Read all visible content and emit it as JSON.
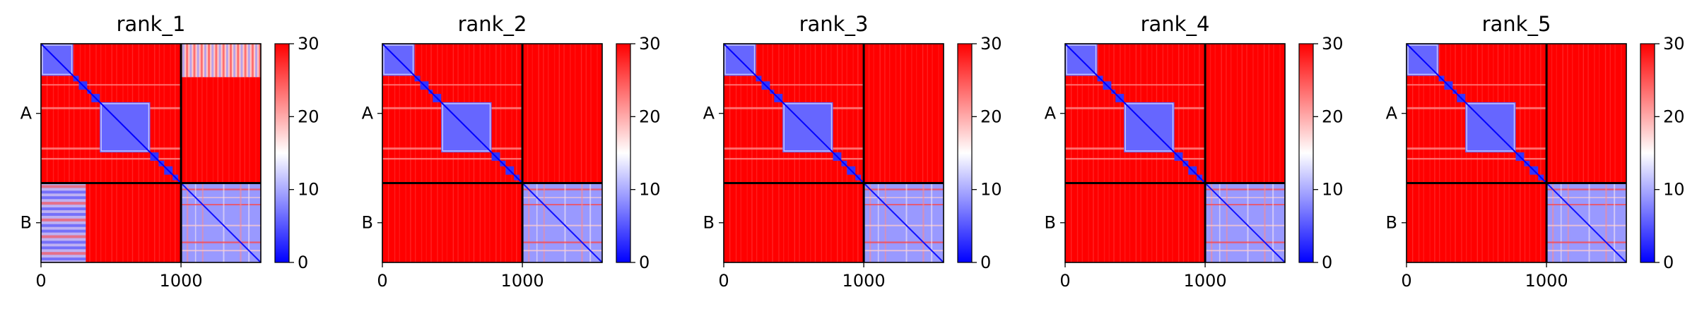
{
  "chart_data": [
    {
      "type": "heatmap",
      "title": "rank_1",
      "xlabel": "",
      "ylabel": "",
      "x_ticks": [
        0,
        1000
      ],
      "x_range": [
        0,
        1570
      ],
      "chain_boundaries": [
        1000
      ],
      "row_labels": [
        "A",
        "B"
      ],
      "colorbar": {
        "min": 0,
        "max": 30,
        "ticks": [
          0,
          10,
          20,
          30
        ],
        "colormap": "bwr"
      },
      "blocks": [
        {
          "rows": "A",
          "cols": "A",
          "mean_value": 24,
          "pattern": "low-error diagonal domains"
        },
        {
          "rows": "A",
          "cols": "B",
          "mean_value": 27,
          "pattern": "banded, partly low near rows 0-300"
        },
        {
          "rows": "B",
          "cols": "A",
          "mean_value": 26,
          "pattern": "banded, low near cols 0-300"
        },
        {
          "rows": "B",
          "cols": "B",
          "mean_value": 9,
          "pattern": "low-error with red bands"
        }
      ]
    },
    {
      "type": "heatmap",
      "title": "rank_2",
      "xlabel": "",
      "ylabel": "",
      "x_ticks": [
        0,
        1000
      ],
      "x_range": [
        0,
        1570
      ],
      "chain_boundaries": [
        1000
      ],
      "row_labels": [
        "A",
        "B"
      ],
      "colorbar": {
        "min": 0,
        "max": 30,
        "ticks": [
          0,
          10,
          20,
          30
        ],
        "colormap": "bwr"
      },
      "blocks": [
        {
          "rows": "A",
          "cols": "A",
          "mean_value": 24,
          "pattern": "low-error diagonal domains"
        },
        {
          "rows": "A",
          "cols": "B",
          "mean_value": 30,
          "pattern": "high error"
        },
        {
          "rows": "B",
          "cols": "A",
          "mean_value": 30,
          "pattern": "high error"
        },
        {
          "rows": "B",
          "cols": "B",
          "mean_value": 9,
          "pattern": "low-error with red bands"
        }
      ]
    },
    {
      "type": "heatmap",
      "title": "rank_3",
      "xlabel": "",
      "ylabel": "",
      "x_ticks": [
        0,
        1000
      ],
      "x_range": [
        0,
        1570
      ],
      "chain_boundaries": [
        1000
      ],
      "row_labels": [
        "A",
        "B"
      ],
      "colorbar": {
        "min": 0,
        "max": 30,
        "ticks": [
          0,
          10,
          20,
          30
        ],
        "colormap": "bwr"
      },
      "blocks": [
        {
          "rows": "A",
          "cols": "A",
          "mean_value": 24,
          "pattern": "low-error diagonal domains"
        },
        {
          "rows": "A",
          "cols": "B",
          "mean_value": 30,
          "pattern": "high error"
        },
        {
          "rows": "B",
          "cols": "A",
          "mean_value": 30,
          "pattern": "high error"
        },
        {
          "rows": "B",
          "cols": "B",
          "mean_value": 9,
          "pattern": "low-error with red bands"
        }
      ]
    },
    {
      "type": "heatmap",
      "title": "rank_4",
      "xlabel": "",
      "ylabel": "",
      "x_ticks": [
        0,
        1000
      ],
      "x_range": [
        0,
        1570
      ],
      "chain_boundaries": [
        1000
      ],
      "row_labels": [
        "A",
        "B"
      ],
      "colorbar": {
        "min": 0,
        "max": 30,
        "ticks": [
          0,
          10,
          20,
          30
        ],
        "colormap": "bwr"
      },
      "blocks": [
        {
          "rows": "A",
          "cols": "A",
          "mean_value": 24,
          "pattern": "low-error diagonal domains"
        },
        {
          "rows": "A",
          "cols": "B",
          "mean_value": 30,
          "pattern": "high error"
        },
        {
          "rows": "B",
          "cols": "A",
          "mean_value": 30,
          "pattern": "high error"
        },
        {
          "rows": "B",
          "cols": "B",
          "mean_value": 9,
          "pattern": "low-error with red bands"
        }
      ]
    },
    {
      "type": "heatmap",
      "title": "rank_5",
      "xlabel": "",
      "ylabel": "",
      "x_ticks": [
        0,
        1000
      ],
      "x_range": [
        0,
        1570
      ],
      "chain_boundaries": [
        1000
      ],
      "row_labels": [
        "A",
        "B"
      ],
      "colorbar": {
        "min": 0,
        "max": 30,
        "ticks": [
          0,
          10,
          20,
          30
        ],
        "colormap": "bwr"
      },
      "blocks": [
        {
          "rows": "A",
          "cols": "A",
          "mean_value": 24,
          "pattern": "low-error diagonal domains"
        },
        {
          "rows": "A",
          "cols": "B",
          "mean_value": 30,
          "pattern": "high error"
        },
        {
          "rows": "B",
          "cols": "A",
          "mean_value": 30,
          "pattern": "high error"
        },
        {
          "rows": "B",
          "cols": "B",
          "mean_value": 9,
          "pattern": "low-error with red bands"
        }
      ]
    }
  ],
  "colors": {
    "low": "#0000ff",
    "mid": "#ffffff",
    "high": "#ff0000",
    "frame": "#000000"
  }
}
